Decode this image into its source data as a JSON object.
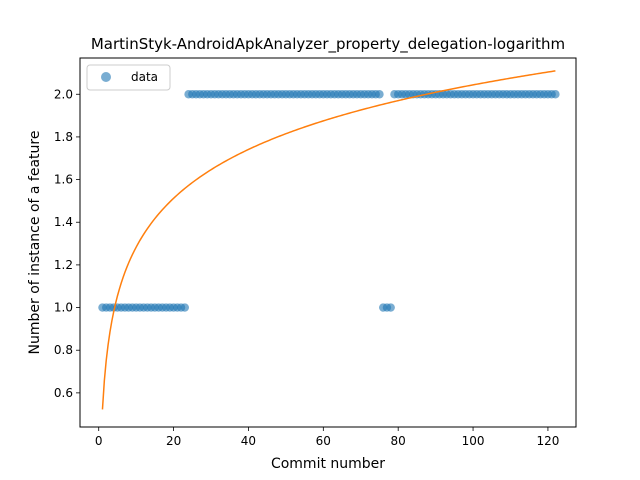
{
  "chart_data": {
    "type": "scatter",
    "title": "MartinStyk-AndroidApkAnalyzer_property_delegation-logarithm",
    "xlabel": "Commit number",
    "ylabel": "Number of instance of a feature",
    "xlim": [
      -5,
      127.5
    ],
    "ylim": [
      0.44,
      2.17
    ],
    "xticks": [
      0,
      20,
      40,
      60,
      80,
      100,
      120
    ],
    "xtick_labels": [
      "0",
      "20",
      "40",
      "60",
      "80",
      "100",
      "120"
    ],
    "yticks": [
      0.6,
      0.8,
      1.0,
      1.2,
      1.4,
      1.6,
      1.8,
      2.0
    ],
    "ytick_labels": [
      "0.6",
      "0.8",
      "1.0",
      "1.2",
      "1.4",
      "1.6",
      "1.8",
      "2.0"
    ],
    "legend": {
      "position": "top-left",
      "entries": [
        "data"
      ]
    },
    "grid": false,
    "colors": {
      "scatter": "#1f77b4",
      "fit": "#ff7f0e"
    },
    "series": [
      {
        "name": "data",
        "kind": "scatter",
        "segments": [
          {
            "x_from": 1,
            "x_to": 23,
            "y": 1
          },
          {
            "x_from": 24,
            "x_to": 75,
            "y": 2
          },
          {
            "x_from": 76,
            "x_to": 78,
            "y": 1
          },
          {
            "x_from": 79,
            "x_to": 122,
            "y": 2
          }
        ]
      },
      {
        "kind": "line",
        "equation": "y = 0.5224 + 0.3304 * ln(x)",
        "x_range": [
          1,
          122
        ],
        "intercept": 0.5224,
        "coefficient": 0.3304
      }
    ]
  }
}
